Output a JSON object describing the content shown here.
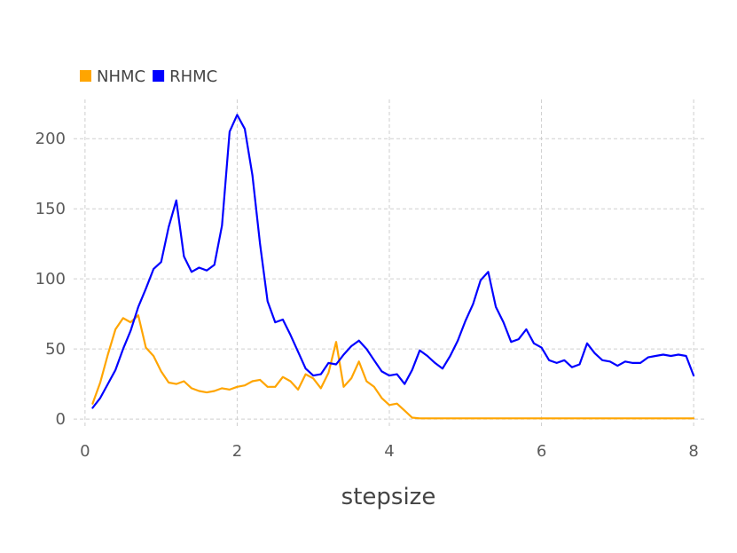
{
  "chart_data": {
    "type": "line",
    "title": "",
    "xlabel": "stepsize",
    "ylabel": "",
    "xlim": [
      -0.15,
      8.15
    ],
    "ylim": [
      -5,
      228
    ],
    "xticks": [
      0,
      2,
      4,
      6,
      8
    ],
    "yticks": [
      0,
      50,
      100,
      150,
      200
    ],
    "grid": true,
    "legend_position": "top-left",
    "series": [
      {
        "name": "NHMC",
        "color": "#FFA500",
        "x": [
          0.1,
          0.2,
          0.3,
          0.4,
          0.5,
          0.6,
          0.7,
          0.8,
          0.9,
          1.0,
          1.1,
          1.2,
          1.3,
          1.4,
          1.5,
          1.6,
          1.7,
          1.8,
          1.9,
          2.0,
          2.1,
          2.2,
          2.3,
          2.4,
          2.5,
          2.6,
          2.7,
          2.8,
          2.9,
          3.0,
          3.1,
          3.2,
          3.3,
          3.4,
          3.5,
          3.6,
          3.7,
          3.8,
          3.9,
          4.0,
          4.1,
          4.2,
          4.3,
          4.4,
          4.5,
          4.6,
          4.7,
          4.8,
          4.9,
          5.0,
          5.1,
          5.2,
          5.3,
          5.4,
          5.5,
          5.6,
          5.7,
          5.8,
          5.9,
          6.0,
          6.1,
          6.2,
          6.3,
          6.4,
          6.5,
          6.6,
          6.7,
          6.8,
          6.9,
          7.0,
          7.1,
          7.2,
          7.3,
          7.4,
          7.5,
          7.6,
          7.7,
          7.8,
          7.9,
          8.0
        ],
        "values": [
          11,
          26,
          46,
          64,
          72,
          69,
          74,
          51,
          45,
          34,
          26,
          25,
          27,
          22,
          20,
          19,
          20,
          22,
          21,
          23,
          24,
          27,
          28,
          23,
          23,
          30,
          27,
          21,
          32,
          29,
          22,
          33,
          55,
          23,
          29,
          41,
          27,
          23,
          15,
          10,
          11,
          6,
          1,
          0.5,
          0.5,
          0.5,
          0.5,
          0.5,
          0.5,
          0.5,
          0.5,
          0.5,
          0.5,
          0.5,
          0.5,
          0.5,
          0.5,
          0.5,
          0.5,
          0.5,
          0.5,
          0.5,
          0.5,
          0.5,
          0.5,
          0.5,
          0.5,
          0.5,
          0.5,
          0.5,
          0.5,
          0.5,
          0.5,
          0.5,
          0.5,
          0.5,
          0.5,
          0.5,
          0.5,
          0.5
        ]
      },
      {
        "name": "RHMC",
        "color": "#0000FF",
        "x": [
          0.1,
          0.2,
          0.3,
          0.4,
          0.5,
          0.6,
          0.7,
          0.8,
          0.9,
          1.0,
          1.1,
          1.2,
          1.3,
          1.4,
          1.5,
          1.6,
          1.7,
          1.8,
          1.9,
          2.0,
          2.1,
          2.2,
          2.3,
          2.4,
          2.5,
          2.6,
          2.7,
          2.8,
          2.9,
          3.0,
          3.1,
          3.2,
          3.3,
          3.4,
          3.5,
          3.6,
          3.7,
          3.8,
          3.9,
          4.0,
          4.1,
          4.2,
          4.3,
          4.4,
          4.5,
          4.6,
          4.7,
          4.8,
          4.9,
          5.0,
          5.1,
          5.2,
          5.3,
          5.4,
          5.5,
          5.6,
          5.7,
          5.8,
          5.9,
          6.0,
          6.1,
          6.2,
          6.3,
          6.4,
          6.5,
          6.6,
          6.7,
          6.8,
          6.9,
          7.0,
          7.1,
          7.2,
          7.3,
          7.4,
          7.5,
          7.6,
          7.7,
          7.8,
          7.9,
          8.0
        ],
        "values": [
          8,
          15,
          25,
          35,
          50,
          63,
          80,
          93,
          107,
          112,
          137,
          156,
          116,
          105,
          108,
          106,
          110,
          138,
          205,
          217,
          207,
          174,
          125,
          84,
          69,
          71,
          60,
          48,
          36,
          31,
          32,
          40,
          39,
          46,
          52,
          56,
          50,
          42,
          34,
          31,
          32,
          25,
          35,
          49,
          45,
          40,
          36,
          45,
          56,
          70,
          82,
          99,
          105,
          80,
          69,
          55,
          57,
          64,
          54,
          51,
          42,
          40,
          42,
          37,
          39,
          54,
          47,
          42,
          41,
          38,
          41,
          40,
          40,
          44,
          45,
          46,
          45,
          46,
          45,
          31
        ]
      }
    ]
  }
}
